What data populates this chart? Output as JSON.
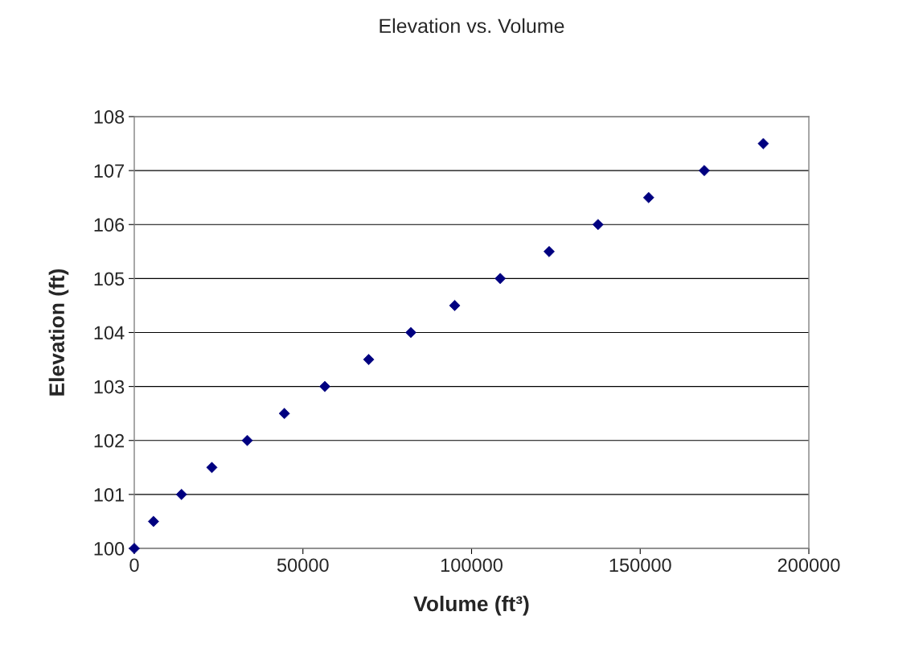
{
  "chart_data": {
    "type": "scatter",
    "title": "Elevation vs. Volume",
    "xlabel": "Volume (ft³)",
    "ylabel": "Elevation (ft)",
    "x": [
      0,
      5700,
      14000,
      23000,
      33500,
      44500,
      56500,
      69500,
      82000,
      95000,
      108500,
      123000,
      137500,
      152500,
      169000,
      186500
    ],
    "series": [
      {
        "color": "#000080",
        "values": [
          100,
          100.5,
          101,
          101.5,
          102,
          102.5,
          103,
          103.5,
          104,
          104.5,
          105,
          105.5,
          106,
          106.5,
          107,
          107.5
        ]
      }
    ],
    "xlim": [
      0,
      200000
    ],
    "xticks": [
      0,
      50000,
      100000,
      150000,
      200000
    ],
    "ylim": [
      100,
      108
    ],
    "yticks": [
      100,
      101,
      102,
      103,
      104,
      105,
      106,
      107,
      108
    ],
    "grid": "y",
    "marker": "diamond"
  }
}
